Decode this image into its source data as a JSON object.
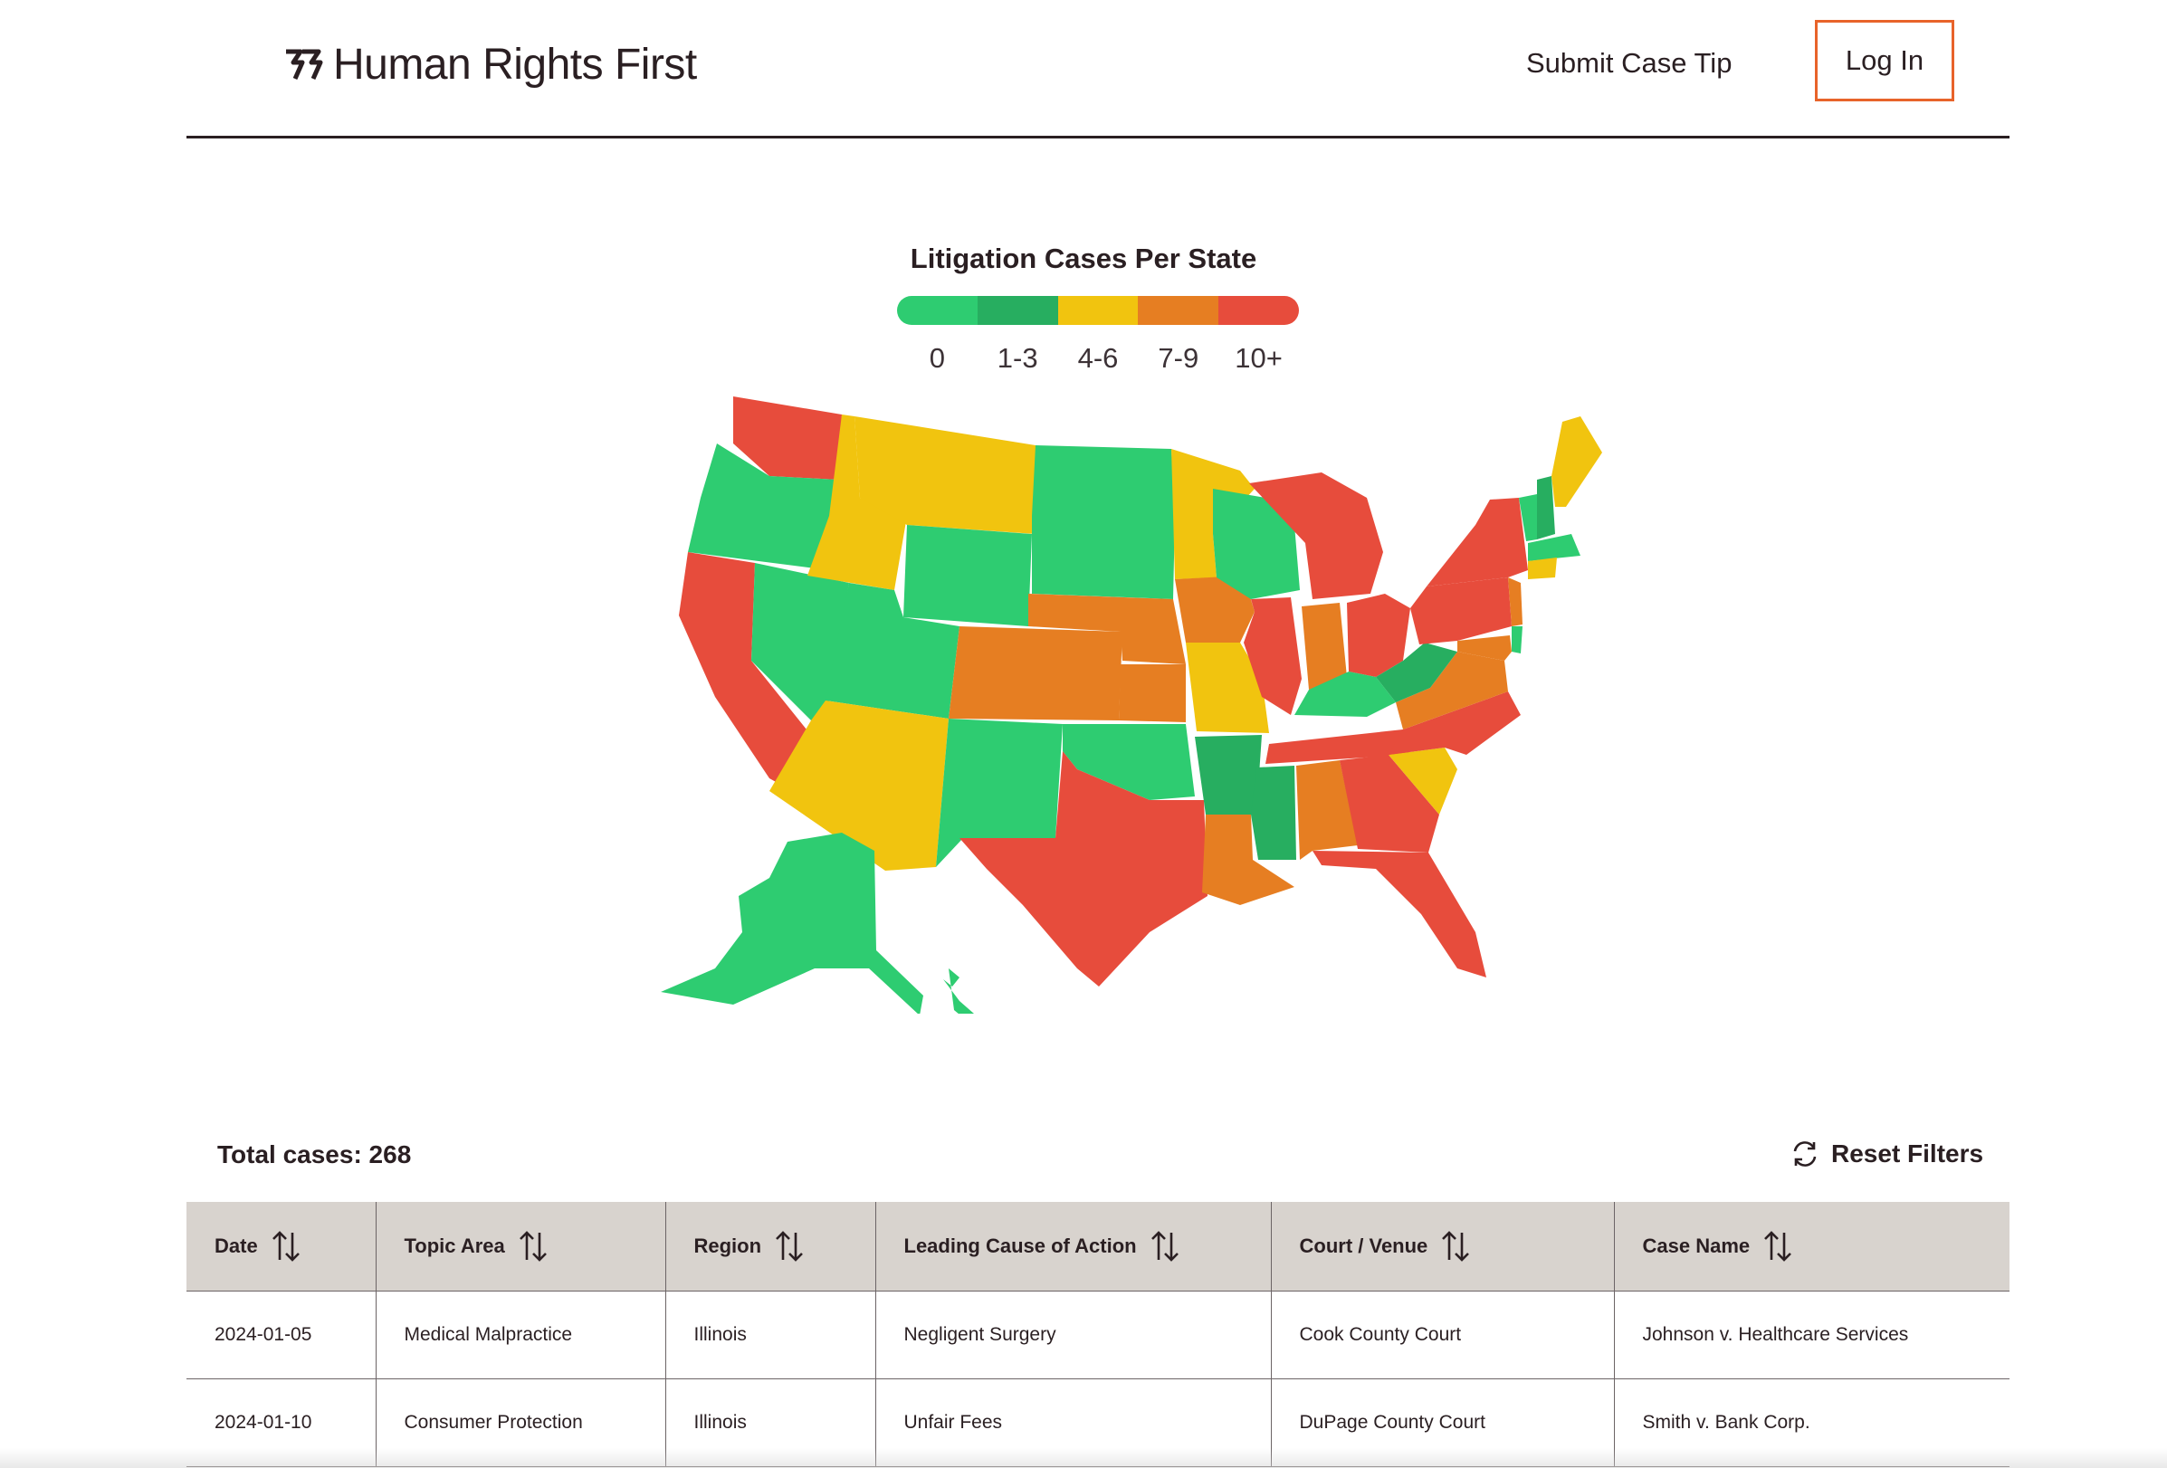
{
  "header": {
    "brand": "Human Rights First",
    "nav_submit": "Submit Case Tip",
    "login": "Log In"
  },
  "map": {
    "title": "Litigation Cases Per State",
    "legend": [
      {
        "label": "0",
        "color": "#2ecc71"
      },
      {
        "label": "1-3",
        "color": "#27ae60"
      },
      {
        "label": "4-6",
        "color": "#f1c40f"
      },
      {
        "label": "7-9",
        "color": "#e67e22"
      },
      {
        "label": "10+",
        "color": "#e74c3c"
      }
    ]
  },
  "summary": {
    "total": "Total cases: 268",
    "reset": "Reset Filters"
  },
  "table": {
    "columns": [
      "Date",
      "Topic Area",
      "Region",
      "Leading Cause of Action",
      "Court / Venue",
      "Case Name"
    ],
    "rows": [
      [
        "2024-01-05",
        "Medical Malpractice",
        "Illinois",
        "Negligent Surgery",
        "Cook County Court",
        "Johnson v. Healthcare Services"
      ],
      [
        "2024-01-10",
        "Consumer Protection",
        "Illinois",
        "Unfair Fees",
        "DuPage County Court",
        "Smith v. Bank Corp."
      ]
    ]
  }
}
